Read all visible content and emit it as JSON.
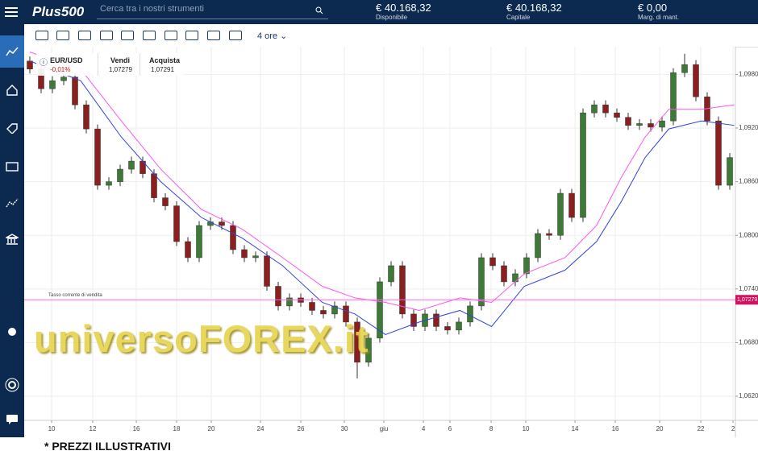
{
  "header": {
    "logo": "Plus500",
    "search_placeholder": "Cerca tra i nostri strumenti",
    "account": [
      {
        "value": "€ 40.168,32",
        "label": "Disponibile"
      },
      {
        "value": "€ 40.168,32",
        "label": "Capitale"
      },
      {
        "value": "€ 0,00",
        "label": "Marg. di mant."
      }
    ]
  },
  "toolbar": {
    "timeframe": "4 ore"
  },
  "instrument": {
    "name": "EUR/USD",
    "change": "-0,01%",
    "sell_label": "Vendi",
    "sell_price": "1,07279",
    "buy_label": "Acquista",
    "buy_price": "1,07291"
  },
  "watermark": "universoFOREX.it",
  "footer": "* PREZZI ILLUSTRATIVI",
  "chart_data": {
    "type": "candlestick",
    "grid": true,
    "up_color": "#3d7a35",
    "down_color": "#8a1f1f",
    "open": [
      1.0995,
      1.0986,
      1.0964,
      1.0973,
      1.0977,
      1.0946,
      1.0919,
      1.0856,
      1.086,
      1.0874,
      1.0883,
      1.0869,
      1.0842,
      1.0833,
      1.0793,
      1.0775,
      1.0811,
      1.0815,
      1.0811,
      1.0784,
      1.0775,
      1.0777,
      1.0743,
      1.0721,
      1.073,
      1.0725,
      1.0716,
      1.0712,
      1.0721,
      1.0703,
      1.0658,
      1.0685,
      1.0748,
      1.0766,
      1.0712,
      1.0698,
      1.0712,
      1.0698,
      1.0694,
      1.0703,
      1.0721,
      1.0775,
      1.0766,
      1.0748,
      1.0757,
      1.0775,
      1.0802,
      1.08,
      1.0847,
      1.082,
      1.0937,
      1.0946,
      1.0937,
      1.0932,
      1.0923,
      1.0925,
      1.0921,
      1.0928,
      1.0982,
      1.0991,
      1.0955,
      1.0928,
      1.0856
    ],
    "high": [
      1.1,
      1.0991,
      1.0978,
      1.0982,
      1.0982,
      1.0951,
      1.0924,
      1.0865,
      1.0879,
      1.0888,
      1.0888,
      1.0874,
      1.0847,
      1.0838,
      1.0798,
      1.0816,
      1.082,
      1.082,
      1.0816,
      1.0789,
      1.0782,
      1.0782,
      1.0748,
      1.0735,
      1.0735,
      1.073,
      1.0721,
      1.0726,
      1.0726,
      1.0708,
      1.069,
      1.0753,
      1.0771,
      1.0771,
      1.0717,
      1.0717,
      1.0717,
      1.0703,
      1.0708,
      1.0726,
      1.078,
      1.078,
      1.0771,
      1.0762,
      1.078,
      1.0807,
      1.0807,
      1.0852,
      1.0852,
      1.0942,
      1.0951,
      1.0951,
      1.0942,
      1.0937,
      1.093,
      1.093,
      1.0933,
      1.0987,
      1.1003,
      1.0996,
      1.096,
      1.0933,
      1.0892
    ],
    "low": [
      1.0981,
      1.0959,
      1.0959,
      1.0968,
      1.0941,
      1.0914,
      1.0851,
      1.0851,
      1.0855,
      1.0869,
      1.0864,
      1.0837,
      1.0828,
      1.0788,
      1.077,
      1.077,
      1.0806,
      1.0806,
      1.0779,
      1.077,
      1.077,
      1.0738,
      1.0716,
      1.0716,
      1.072,
      1.0711,
      1.0707,
      1.0707,
      1.0698,
      1.064,
      1.0653,
      1.068,
      1.0743,
      1.0707,
      1.0693,
      1.0693,
      1.0693,
      1.0689,
      1.0689,
      1.0698,
      1.0716,
      1.0761,
      1.0743,
      1.0743,
      1.0752,
      1.077,
      1.0795,
      1.0795,
      1.0815,
      1.0815,
      1.0932,
      1.0932,
      1.0927,
      1.0918,
      1.0918,
      1.0916,
      1.0916,
      1.0923,
      1.0977,
      1.095,
      1.0923,
      1.0851,
      1.0851
    ],
    "close": [
      1.0986,
      1.0964,
      1.0973,
      1.0977,
      1.0946,
      1.0919,
      1.0856,
      1.086,
      1.0874,
      1.0883,
      1.0869,
      1.0842,
      1.0833,
      1.0793,
      1.0775,
      1.0811,
      1.0815,
      1.0811,
      1.0784,
      1.0775,
      1.0777,
      1.0743,
      1.0721,
      1.073,
      1.0725,
      1.0716,
      1.0712,
      1.0721,
      1.0703,
      1.0658,
      1.0685,
      1.0748,
      1.0766,
      1.0712,
      1.0698,
      1.0712,
      1.0698,
      1.0694,
      1.0703,
      1.0721,
      1.0775,
      1.0766,
      1.0748,
      1.0757,
      1.0775,
      1.0802,
      1.08,
      1.0847,
      1.082,
      1.0937,
      1.0946,
      1.0937,
      1.0932,
      1.0923,
      1.0925,
      1.0921,
      1.0928,
      1.0982,
      1.0991,
      1.0955,
      1.0928,
      1.0856,
      1.0887
    ],
    "series": [
      {
        "color": "#ff55ee",
        "x": [
          0,
          4.5,
          8.1,
          11.6,
          15.2,
          18.8,
          22.4,
          25.9,
          28.8,
          31.5,
          34.5,
          38.1,
          40.9,
          43.8,
          47.4,
          50.2,
          52.4,
          54.5,
          56.6,
          59.5,
          62.4
        ],
        "values": [
          1.1005,
          1.0986,
          1.0928,
          1.0874,
          1.0829,
          1.0807,
          1.0775,
          1.0743,
          1.073,
          1.0725,
          1.0716,
          1.073,
          1.0725,
          1.0757,
          1.0775,
          1.0811,
          1.0865,
          1.091,
          1.0941,
          1.0941,
          1.0946
        ]
      },
      {
        "color": "#3344dd",
        "x": [
          0,
          4.5,
          8.1,
          11.6,
          15.2,
          18.8,
          22.4,
          25.9,
          28.8,
          31.5,
          34.5,
          38.1,
          40.9,
          43.8,
          47.4,
          50.2,
          52.4,
          54.5,
          56.6,
          59.5,
          62.4
        ],
        "values": [
          1.0995,
          1.0973,
          1.091,
          1.086,
          1.082,
          1.0797,
          1.0766,
          1.0725,
          1.0712,
          1.0689,
          1.0703,
          1.0716,
          1.0698,
          1.0743,
          1.0761,
          1.0793,
          1.0838,
          1.0887,
          1.0919,
          1.0928,
          1.0923
        ]
      }
    ],
    "current_rate": {
      "value": 1.07279,
      "label": "1,07279",
      "text": "Tasso corrente di vendita",
      "color": "#ff66ee"
    },
    "xlim": [
      -0.5,
      62.5
    ],
    "xticks": [
      {
        "value": 1.93,
        "label": "10"
      },
      {
        "value": 5.57,
        "label": "12"
      },
      {
        "value": 9.43,
        "label": "16"
      },
      {
        "value": 13,
        "label": "18"
      },
      {
        "value": 16.07,
        "label": "20"
      },
      {
        "value": 20.43,
        "label": "24"
      },
      {
        "value": 24,
        "label": "26"
      },
      {
        "value": 27.86,
        "label": "30"
      },
      {
        "value": 31.36,
        "label": "giu"
      },
      {
        "value": 34.86,
        "label": "4"
      },
      {
        "value": 37.21,
        "label": "6"
      },
      {
        "value": 40.86,
        "label": "8"
      },
      {
        "value": 43.93,
        "label": "10"
      },
      {
        "value": 48.29,
        "label": "14"
      },
      {
        "value": 51.86,
        "label": "16"
      },
      {
        "value": 55.79,
        "label": "20"
      },
      {
        "value": 59.43,
        "label": "22"
      },
      {
        "value": 62.29,
        "label": "2"
      }
    ],
    "ylim": [
      1.0593,
      1.1011
    ],
    "yticks": [
      {
        "value": 1.098,
        "label": "1,09800"
      },
      {
        "value": 1.092,
        "label": "1,09200"
      },
      {
        "value": 1.086,
        "label": "1,08600"
      },
      {
        "value": 1.08,
        "label": "1,08000"
      },
      {
        "value": 1.074,
        "label": "1,07400"
      },
      {
        "value": 1.068,
        "label": "1,06800"
      },
      {
        "value": 1.062,
        "label": "1,06200"
      }
    ]
  }
}
